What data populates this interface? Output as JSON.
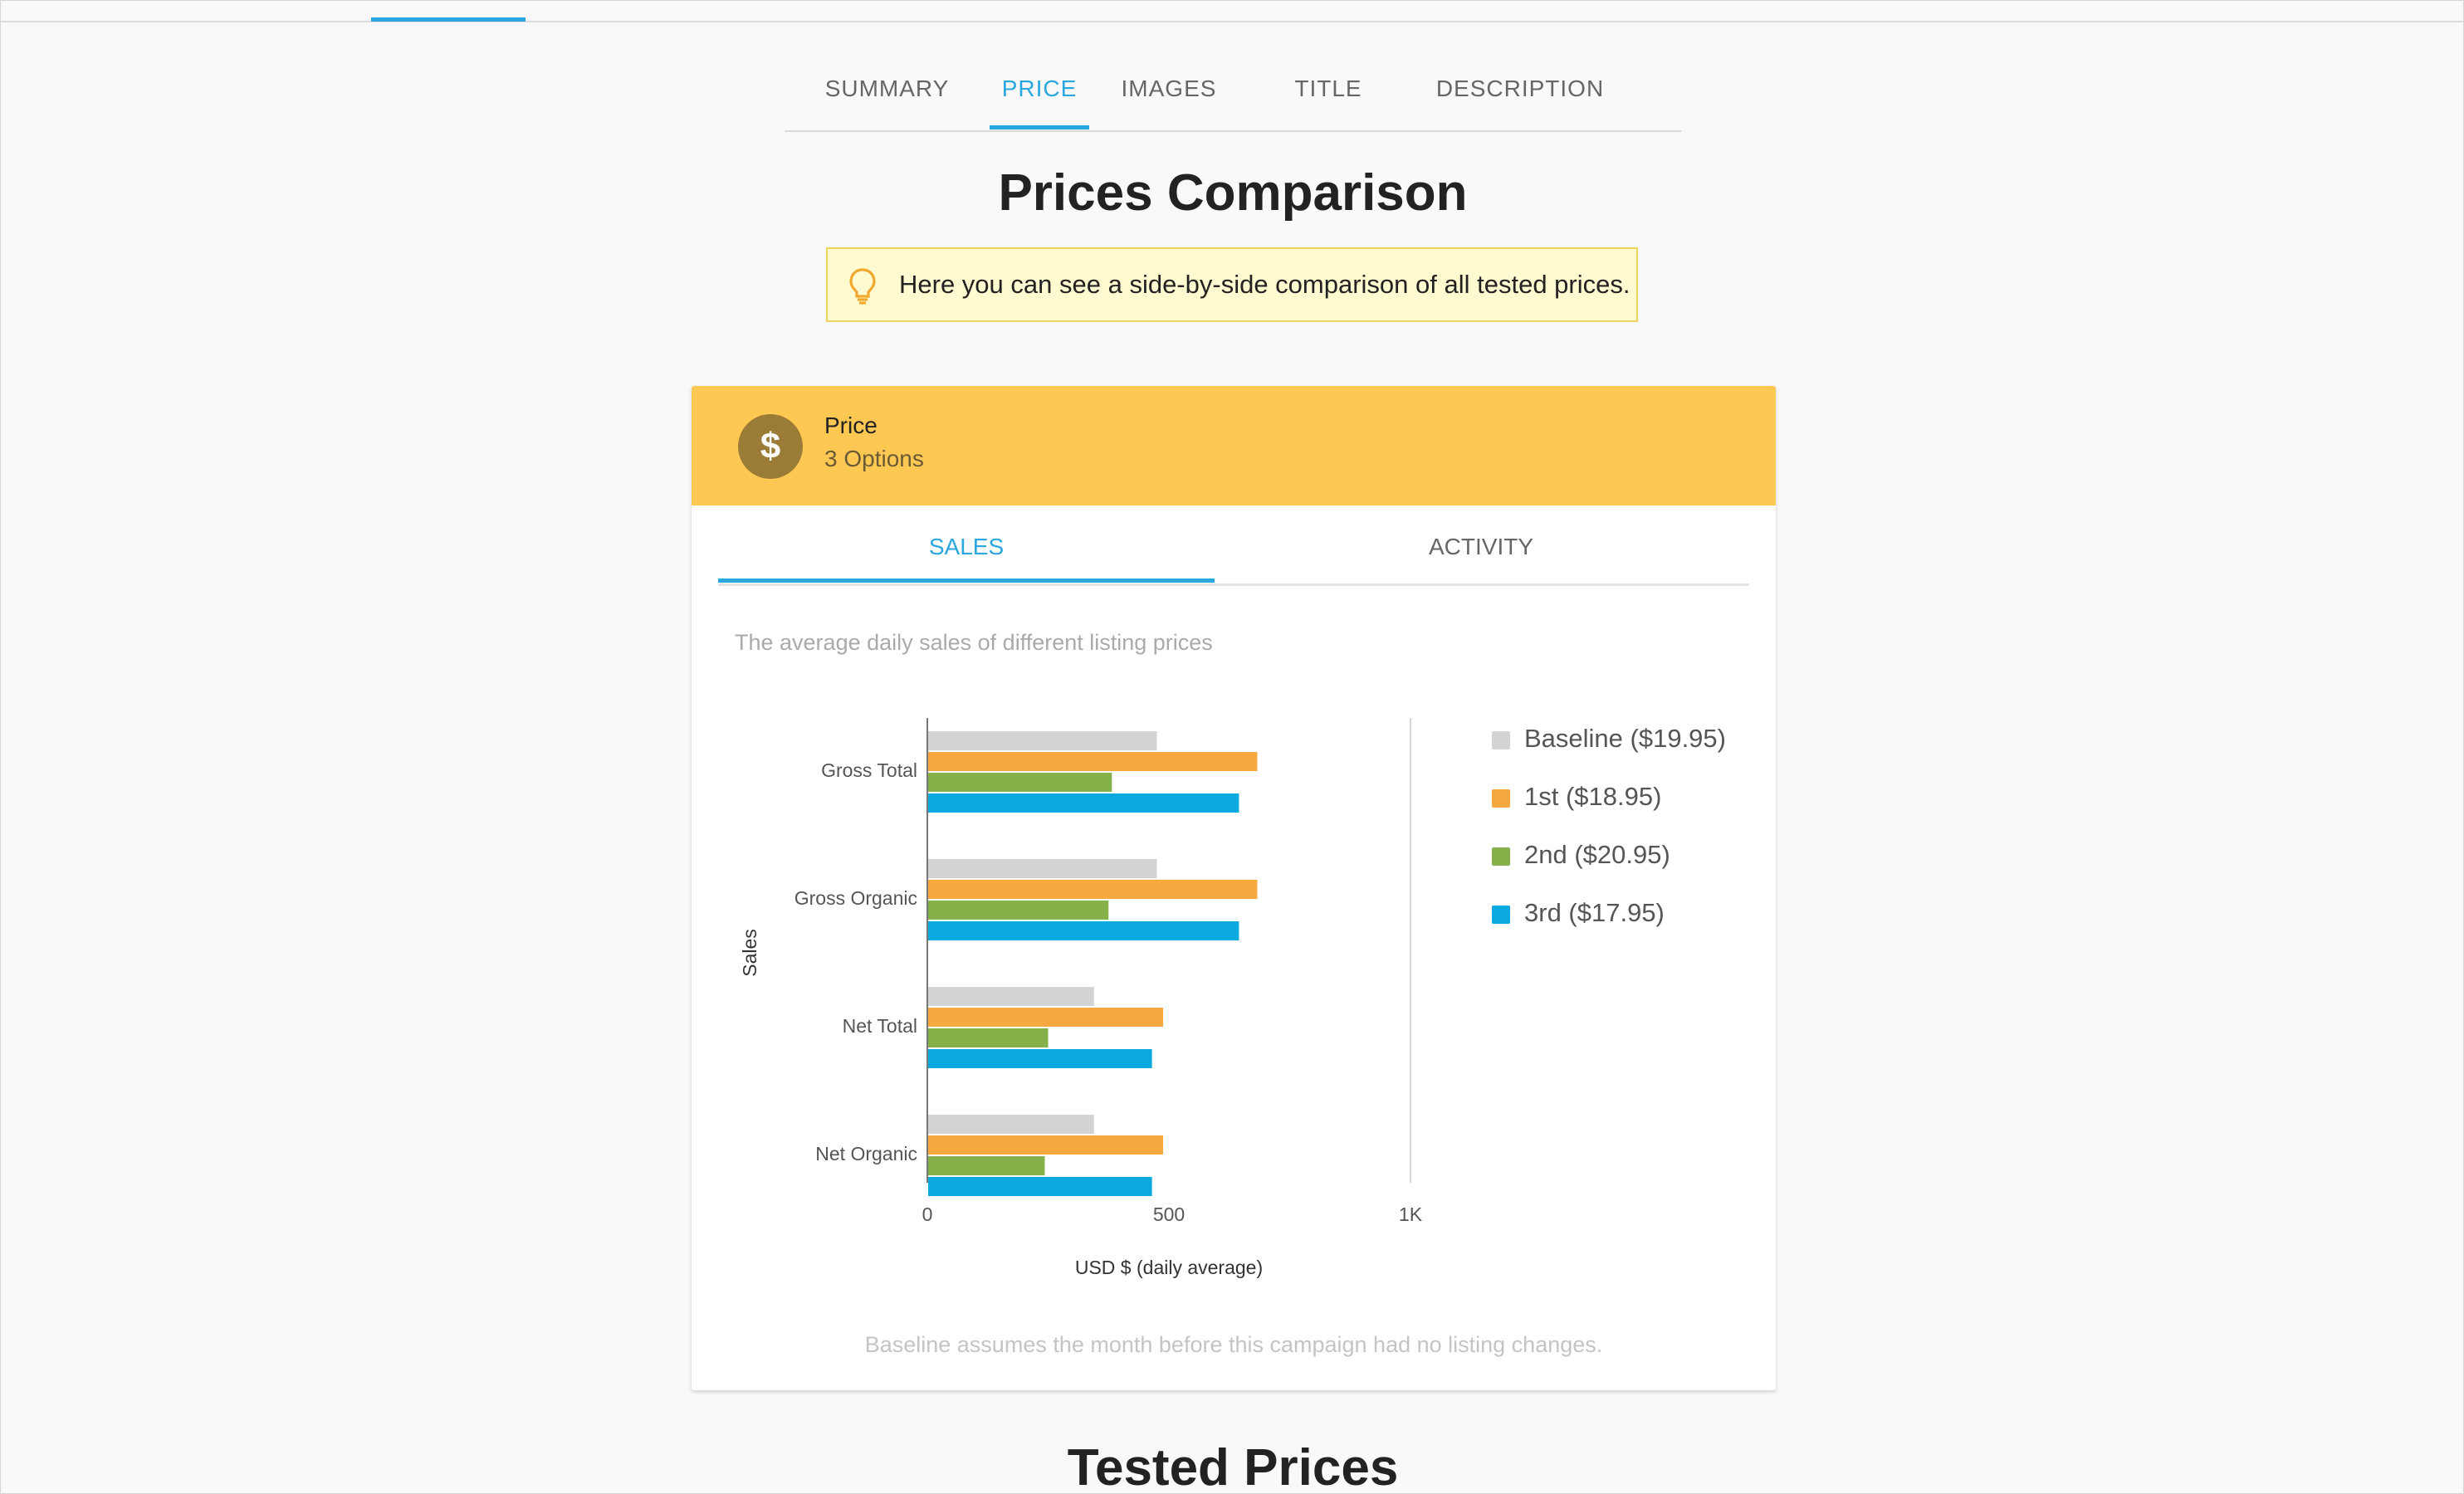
{
  "nav": {
    "tabs": [
      "SUMMARY",
      "PRICE",
      "IMAGES",
      "TITLE",
      "DESCRIPTION"
    ],
    "active": "PRICE"
  },
  "page_title": "Prices Comparison",
  "tip": {
    "icon": "lightbulb-icon",
    "text": "Here you can see a side-by-side comparison of all tested prices."
  },
  "card": {
    "icon": "dollar-icon",
    "title": "Price",
    "subtitle": "3 Options",
    "tabs": [
      "SALES",
      "ACTIVITY"
    ],
    "active_tab": "SALES",
    "caption": "The average daily sales of different listing prices",
    "footnote": "Baseline assumes the month before this campaign had no listing changes."
  },
  "chart_data": {
    "type": "bar",
    "orientation": "horizontal",
    "categories": [
      "Gross Total",
      "Gross Organic",
      "Net Total",
      "Net Organic"
    ],
    "series": [
      {
        "name": "Baseline ($19.95)",
        "color": "#d3d3d3",
        "values": [
          475,
          475,
          345,
          345
        ]
      },
      {
        "name": "1st ($18.95)",
        "color": "#f7a93f",
        "values": [
          683,
          683,
          488,
          488
        ]
      },
      {
        "name": "2nd ($20.95)",
        "color": "#85b04a",
        "values": [
          382,
          375,
          250,
          243
        ]
      },
      {
        "name": "3rd ($17.95)",
        "color": "#0aaadf",
        "values": [
          645,
          645,
          465,
          465
        ]
      }
    ],
    "xlabel": "USD $ (daily average)",
    "ylabel": "Sales",
    "xlim": [
      0,
      1000
    ],
    "xticks": [
      "0",
      "500",
      "1K"
    ],
    "legend": "right"
  },
  "section_title": "Tested Prices"
}
